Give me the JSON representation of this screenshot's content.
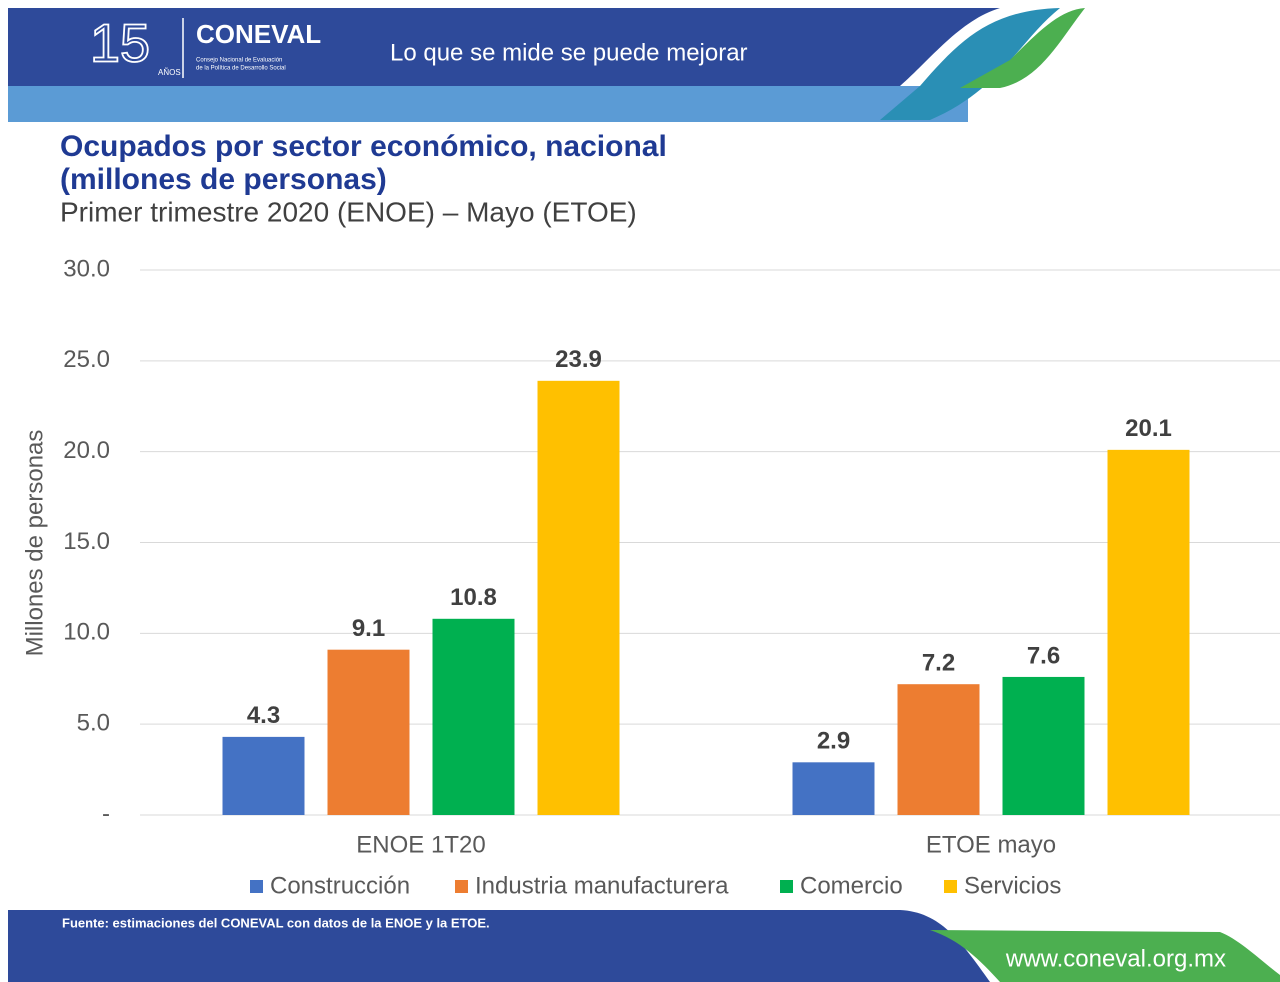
{
  "header": {
    "logo_number": "15",
    "logo_years": "AÑOS",
    "logo_name": "CONEVAL",
    "logo_caption": [
      "Consejo Nacional de Evaluación",
      "de la Política de Desarrollo Social"
    ],
    "slogan": "Lo que se mide se puede mejorar"
  },
  "chart_data": {
    "type": "bar",
    "title": [
      "Ocupados por sector económico, nacional",
      "(millones de personas)"
    ],
    "subtitle": "Primer trimestre 2020 (ENOE) – Mayo (ETOE)",
    "y_label": "Millones de personas",
    "categories": [
      "ENOE 1T20",
      "ETOE mayo"
    ],
    "series": [
      {
        "name": "Construcción",
        "color": "#4472c4",
        "values": [
          4.3,
          2.9
        ]
      },
      {
        "name": "Industria manufacturera",
        "color": "#ed7d31",
        "values": [
          9.1,
          7.2
        ]
      },
      {
        "name": "Comercio",
        "color": "#00b050",
        "values": [
          10.8,
          7.6
        ]
      },
      {
        "name": "Servicios",
        "color": "#ffc000",
        "values": [
          23.9,
          20.1
        ]
      }
    ],
    "ylim": [
      0,
      30
    ],
    "yticks": [
      {
        "value": 0,
        "label": "-"
      },
      {
        "value": 5,
        "label": "5.0"
      },
      {
        "value": 10,
        "label": "10.0"
      },
      {
        "value": 15,
        "label": "15.0"
      },
      {
        "value": 20,
        "label": "20.0"
      },
      {
        "value": 25,
        "label": "25.0"
      },
      {
        "value": 30,
        "label": "30.0"
      }
    ],
    "grid": true,
    "legend": "bottom"
  },
  "footer": {
    "source": "Fuente: estimaciones del CONEVAL con datos de la ENOE y la ETOE.",
    "url": "www.coneval.org.mx"
  }
}
